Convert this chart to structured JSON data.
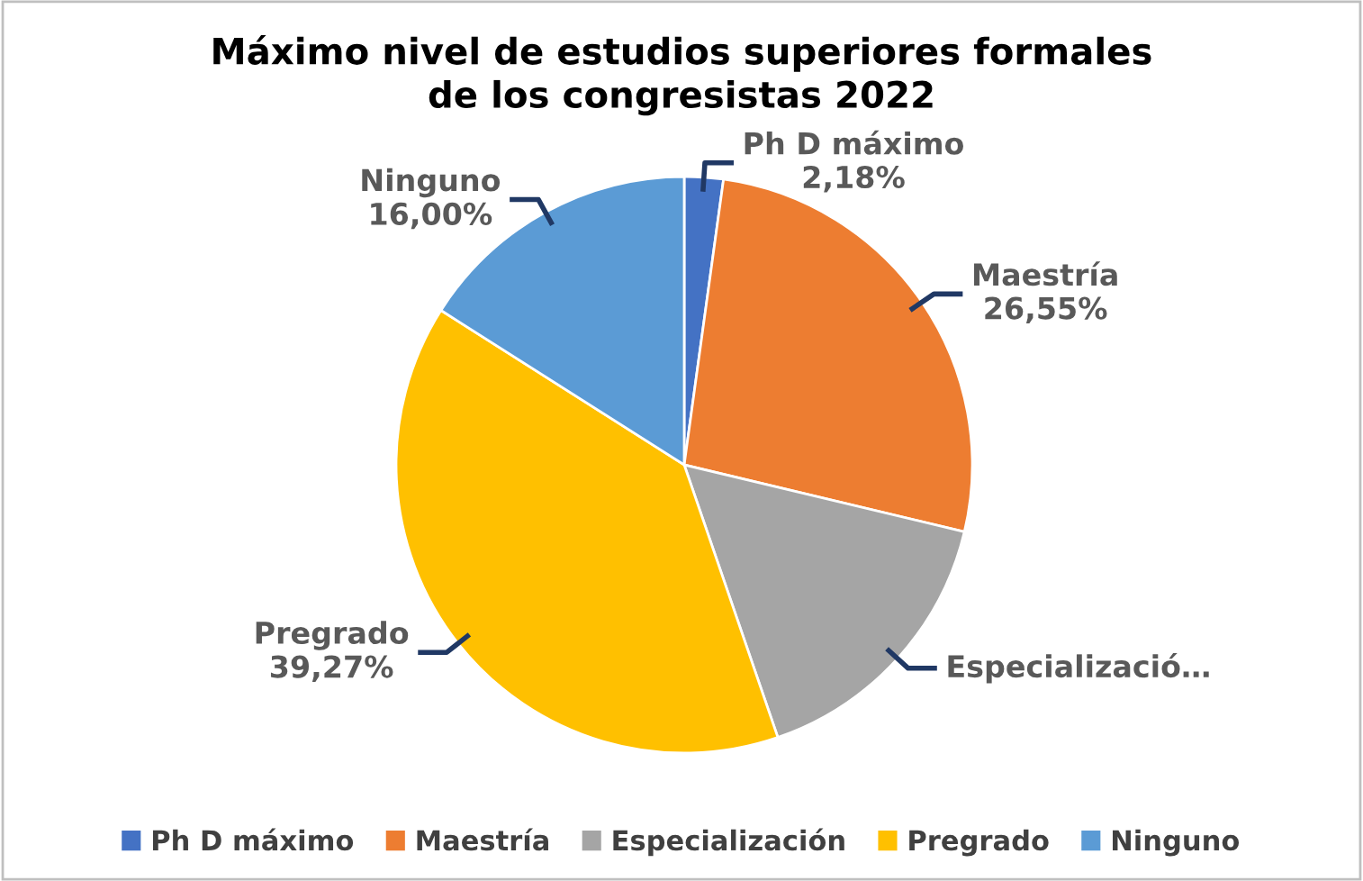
{
  "chart_data": {
    "type": "pie",
    "title": "Máximo nivel de estudios superiores formales\nde los congresistas 2022",
    "categories": [
      "Ph D máximo",
      "Maestría",
      "Especialización",
      "Pregrado",
      "Ninguno"
    ],
    "values": [
      2.18,
      26.55,
      16.0,
      39.27,
      16.0
    ],
    "colors": [
      "#4472c4",
      "#ed7d31",
      "#a5a5a5",
      "#ffc000",
      "#5b9bd5"
    ],
    "value_labels": [
      "Ph D máximo\n2,18%",
      "Maestría\n26,55%",
      "Especializació…",
      "Pregrado\n39,27%",
      "Ninguno\n16,00%"
    ],
    "legend": "bottom"
  }
}
